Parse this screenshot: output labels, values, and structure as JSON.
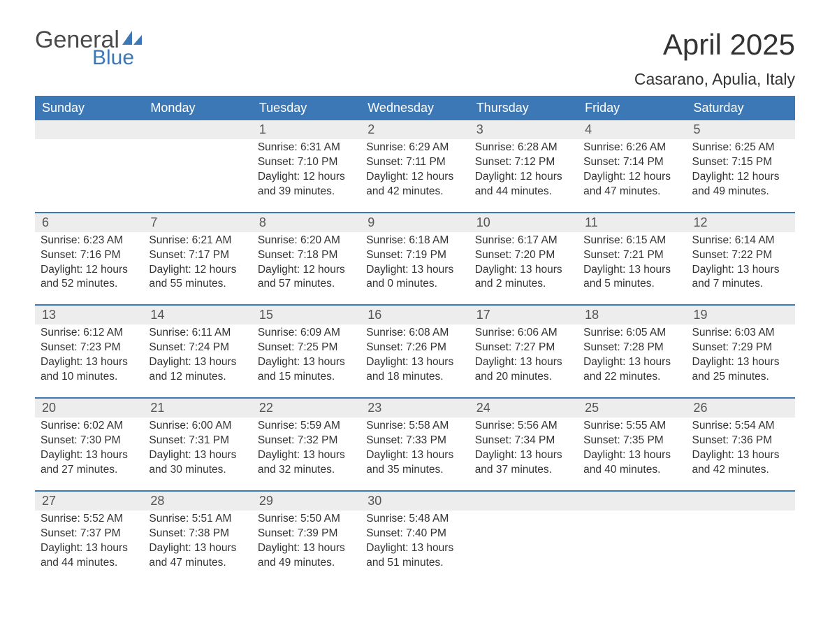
{
  "logo": {
    "text_primary": "General",
    "text_secondary": "Blue",
    "icon_color": "#3d78b6",
    "primary_color": "#4a4a4a",
    "secondary_color": "#3d78b6"
  },
  "header": {
    "month_title": "April 2025",
    "location": "Casarano, Apulia, Italy"
  },
  "styling": {
    "header_bg": "#3d78b6",
    "header_text": "#ffffff",
    "daynum_bg": "#ededed",
    "daynum_border": "#3d78b6",
    "body_text": "#333333",
    "page_bg": "#ffffff",
    "font_family": "Arial",
    "month_title_fontsize": 42,
    "location_fontsize": 23,
    "weekday_fontsize": 18,
    "daynum_fontsize": 18,
    "cell_fontsize": 15.5
  },
  "weekdays": [
    "Sunday",
    "Monday",
    "Tuesday",
    "Wednesday",
    "Thursday",
    "Friday",
    "Saturday"
  ],
  "labels": {
    "sunrise": "Sunrise: ",
    "sunset": "Sunset: ",
    "daylight": "Daylight: "
  },
  "weeks": [
    [
      {
        "day": "",
        "sunrise": "",
        "sunset": "",
        "daylight": ""
      },
      {
        "day": "",
        "sunrise": "",
        "sunset": "",
        "daylight": ""
      },
      {
        "day": "1",
        "sunrise": "6:31 AM",
        "sunset": "7:10 PM",
        "daylight": "12 hours and 39 minutes."
      },
      {
        "day": "2",
        "sunrise": "6:29 AM",
        "sunset": "7:11 PM",
        "daylight": "12 hours and 42 minutes."
      },
      {
        "day": "3",
        "sunrise": "6:28 AM",
        "sunset": "7:12 PM",
        "daylight": "12 hours and 44 minutes."
      },
      {
        "day": "4",
        "sunrise": "6:26 AM",
        "sunset": "7:14 PM",
        "daylight": "12 hours and 47 minutes."
      },
      {
        "day": "5",
        "sunrise": "6:25 AM",
        "sunset": "7:15 PM",
        "daylight": "12 hours and 49 minutes."
      }
    ],
    [
      {
        "day": "6",
        "sunrise": "6:23 AM",
        "sunset": "7:16 PM",
        "daylight": "12 hours and 52 minutes."
      },
      {
        "day": "7",
        "sunrise": "6:21 AM",
        "sunset": "7:17 PM",
        "daylight": "12 hours and 55 minutes."
      },
      {
        "day": "8",
        "sunrise": "6:20 AM",
        "sunset": "7:18 PM",
        "daylight": "12 hours and 57 minutes."
      },
      {
        "day": "9",
        "sunrise": "6:18 AM",
        "sunset": "7:19 PM",
        "daylight": "13 hours and 0 minutes."
      },
      {
        "day": "10",
        "sunrise": "6:17 AM",
        "sunset": "7:20 PM",
        "daylight": "13 hours and 2 minutes."
      },
      {
        "day": "11",
        "sunrise": "6:15 AM",
        "sunset": "7:21 PM",
        "daylight": "13 hours and 5 minutes."
      },
      {
        "day": "12",
        "sunrise": "6:14 AM",
        "sunset": "7:22 PM",
        "daylight": "13 hours and 7 minutes."
      }
    ],
    [
      {
        "day": "13",
        "sunrise": "6:12 AM",
        "sunset": "7:23 PM",
        "daylight": "13 hours and 10 minutes."
      },
      {
        "day": "14",
        "sunrise": "6:11 AM",
        "sunset": "7:24 PM",
        "daylight": "13 hours and 12 minutes."
      },
      {
        "day": "15",
        "sunrise": "6:09 AM",
        "sunset": "7:25 PM",
        "daylight": "13 hours and 15 minutes."
      },
      {
        "day": "16",
        "sunrise": "6:08 AM",
        "sunset": "7:26 PM",
        "daylight": "13 hours and 18 minutes."
      },
      {
        "day": "17",
        "sunrise": "6:06 AM",
        "sunset": "7:27 PM",
        "daylight": "13 hours and 20 minutes."
      },
      {
        "day": "18",
        "sunrise": "6:05 AM",
        "sunset": "7:28 PM",
        "daylight": "13 hours and 22 minutes."
      },
      {
        "day": "19",
        "sunrise": "6:03 AM",
        "sunset": "7:29 PM",
        "daylight": "13 hours and 25 minutes."
      }
    ],
    [
      {
        "day": "20",
        "sunrise": "6:02 AM",
        "sunset": "7:30 PM",
        "daylight": "13 hours and 27 minutes."
      },
      {
        "day": "21",
        "sunrise": "6:00 AM",
        "sunset": "7:31 PM",
        "daylight": "13 hours and 30 minutes."
      },
      {
        "day": "22",
        "sunrise": "5:59 AM",
        "sunset": "7:32 PM",
        "daylight": "13 hours and 32 minutes."
      },
      {
        "day": "23",
        "sunrise": "5:58 AM",
        "sunset": "7:33 PM",
        "daylight": "13 hours and 35 minutes."
      },
      {
        "day": "24",
        "sunrise": "5:56 AM",
        "sunset": "7:34 PM",
        "daylight": "13 hours and 37 minutes."
      },
      {
        "day": "25",
        "sunrise": "5:55 AM",
        "sunset": "7:35 PM",
        "daylight": "13 hours and 40 minutes."
      },
      {
        "day": "26",
        "sunrise": "5:54 AM",
        "sunset": "7:36 PM",
        "daylight": "13 hours and 42 minutes."
      }
    ],
    [
      {
        "day": "27",
        "sunrise": "5:52 AM",
        "sunset": "7:37 PM",
        "daylight": "13 hours and 44 minutes."
      },
      {
        "day": "28",
        "sunrise": "5:51 AM",
        "sunset": "7:38 PM",
        "daylight": "13 hours and 47 minutes."
      },
      {
        "day": "29",
        "sunrise": "5:50 AM",
        "sunset": "7:39 PM",
        "daylight": "13 hours and 49 minutes."
      },
      {
        "day": "30",
        "sunrise": "5:48 AM",
        "sunset": "7:40 PM",
        "daylight": "13 hours and 51 minutes."
      },
      {
        "day": "",
        "sunrise": "",
        "sunset": "",
        "daylight": ""
      },
      {
        "day": "",
        "sunrise": "",
        "sunset": "",
        "daylight": ""
      },
      {
        "day": "",
        "sunrise": "",
        "sunset": "",
        "daylight": ""
      }
    ]
  ]
}
